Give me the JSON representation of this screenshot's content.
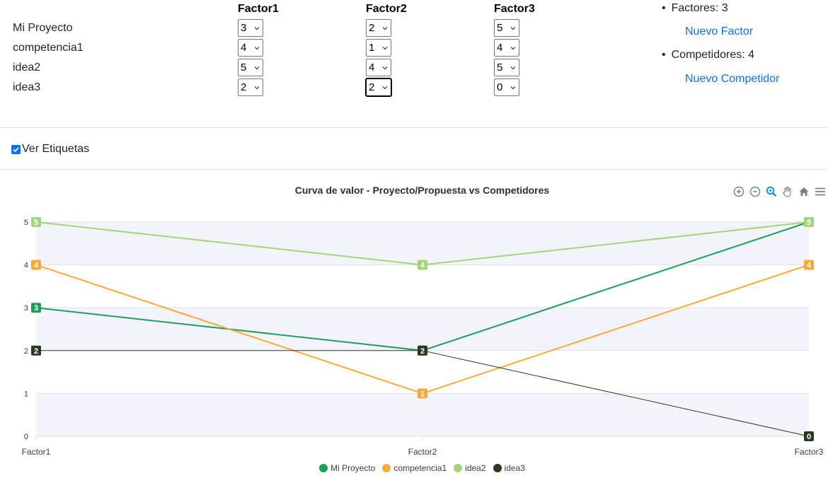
{
  "matrix": {
    "factors": [
      "Factor1",
      "Factor2",
      "Factor3"
    ],
    "rows": [
      {
        "name": "Mi Proyecto",
        "scores": [
          "3",
          "2",
          "5"
        ]
      },
      {
        "name": "competencia1",
        "scores": [
          "4",
          "1",
          "4"
        ]
      },
      {
        "name": "idea2",
        "scores": [
          "5",
          "4",
          "5"
        ]
      },
      {
        "name": "idea3",
        "scores": [
          "2",
          "2",
          "0"
        ]
      }
    ]
  },
  "side": {
    "factors_text": "Factores: 3",
    "new_factor_label": "Nuevo Factor",
    "competitors_text": "Competidores: 4",
    "new_competitor_label": "Nuevo Competidor"
  },
  "labels_toggle": {
    "label": "Ver Etiquetas",
    "checked": true
  },
  "chart": {
    "title": "Curva de valor - Proyecto/Propuesta vs Competidores",
    "toolbar": [
      "zoom-in-icon",
      "zoom-out-icon",
      "zoom-select-icon",
      "pan-hand-icon",
      "home-reset-icon",
      "menu-icon"
    ]
  },
  "chart_data": {
    "type": "line",
    "title": "Curva de valor - Proyecto/Propuesta vs Competidores",
    "categories": [
      "Factor1",
      "Factor2",
      "Factor3"
    ],
    "ylim": [
      0,
      5
    ],
    "yticks": [
      "0",
      "1",
      "2",
      "3",
      "4",
      "5"
    ],
    "grid": true,
    "legend_position": "bottom",
    "series": [
      {
        "name": "Mi Proyecto",
        "values": [
          3,
          2,
          5
        ],
        "color": "#1e9e5a"
      },
      {
        "name": "competencia1",
        "values": [
          4,
          1,
          4
        ],
        "color": "#f8a93b"
      },
      {
        "name": "idea2",
        "values": [
          5,
          4,
          5
        ],
        "color": "#a2d47a"
      },
      {
        "name": "idea3",
        "values": [
          2,
          2,
          0
        ],
        "color": "#2a3a22"
      }
    ]
  }
}
